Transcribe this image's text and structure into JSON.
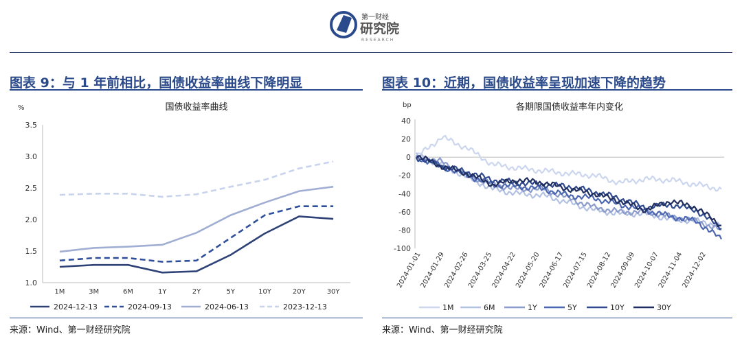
{
  "header": {
    "logo_small": "第一财经",
    "logo_big": "研究院",
    "logo_sub": "RESEARCH"
  },
  "left": {
    "panel_title": "图表 9：与 1 年前相比，国债收益率曲线下降明显",
    "source": "来源：Wind、第一财经研究院"
  },
  "right": {
    "panel_title": "图表 10：近期，国债收益率呈现加速下降的趋势",
    "source": "来源：Wind、第一财经研究院"
  },
  "chart_data": [
    {
      "type": "line",
      "title": "国债收益率曲线",
      "ylabel": "%",
      "xlabel": "",
      "categories": [
        "1M",
        "3M",
        "6M",
        "1Y",
        "2Y",
        "5Y",
        "10Y",
        "20Y",
        "30Y"
      ],
      "ylim": [
        1.0,
        3.5
      ],
      "yticks": [
        "1.0",
        "1.5",
        "2.0",
        "2.5",
        "3.0",
        "3.5"
      ],
      "legend_position": "bottom",
      "series": [
        {
          "name": "2024-12-13",
          "color": "#2e4278",
          "dash": "solid",
          "values": [
            1.25,
            1.28,
            1.28,
            1.16,
            1.18,
            1.44,
            1.78,
            2.05,
            2.01
          ]
        },
        {
          "name": "2024-09-13",
          "color": "#2f4e9b",
          "dash": "dashed",
          "values": [
            1.35,
            1.39,
            1.39,
            1.33,
            1.35,
            1.71,
            2.07,
            2.21,
            2.21
          ]
        },
        {
          "name": "2024-06-13",
          "color": "#a0aed3",
          "dash": "solid",
          "values": [
            1.49,
            1.55,
            1.57,
            1.6,
            1.79,
            2.07,
            2.27,
            2.45,
            2.52
          ]
        },
        {
          "name": "2023-12-13",
          "color": "#c8d3ec",
          "dash": "dashed",
          "values": [
            2.39,
            2.41,
            2.41,
            2.36,
            2.4,
            2.52,
            2.63,
            2.81,
            2.92
          ]
        }
      ]
    },
    {
      "type": "line",
      "title": "各期限国债收益率年内变化",
      "ylabel": "bp",
      "xlabel": "",
      "ylim": [
        -100,
        40
      ],
      "yticks": [
        "40",
        "20",
        "0",
        "-20",
        "-40",
        "-60",
        "-80",
        "-100"
      ],
      "x_ticks": [
        "2024-01-01",
        "2024-01-29",
        "2024-02-26",
        "2024-03-25",
        "2024-04-22",
        "2024-05-20",
        "2024-06-17",
        "2024-07-15",
        "2024-08-12",
        "2024-09-09",
        "2024-10-07",
        "2024-11-04",
        "2024-12-02"
      ],
      "legend_position": "bottom",
      "series": [
        {
          "name": "1M",
          "color": "#ccd6ee",
          "values": [
            0,
            22,
            10,
            -8,
            -12,
            -15,
            -18,
            -20,
            -28,
            -24,
            -25,
            -30,
            -35
          ]
        },
        {
          "name": "6M",
          "color": "#b3c1e2",
          "values": [
            2,
            -8,
            -22,
            -35,
            -40,
            -42,
            -50,
            -58,
            -62,
            -62,
            -68,
            -70,
            -75
          ]
        },
        {
          "name": "1Y",
          "color": "#8b9ccc",
          "values": [
            0,
            -5,
            -20,
            -30,
            -35,
            -35,
            -45,
            -55,
            -60,
            -60,
            -65,
            -70,
            -80
          ]
        },
        {
          "name": "5Y",
          "color": "#4c67b1",
          "values": [
            0,
            -10,
            -20,
            -30,
            -32,
            -35,
            -42,
            -45,
            -52,
            -58,
            -65,
            -70,
            -90
          ]
        },
        {
          "name": "10Y",
          "color": "#2f4a8f",
          "values": [
            0,
            -10,
            -16,
            -25,
            -28,
            -30,
            -32,
            -38,
            -45,
            -55,
            -52,
            -58,
            -78
          ]
        },
        {
          "name": "30Y",
          "color": "#1f2e5e",
          "values": [
            2,
            -10,
            -18,
            -30,
            -25,
            -28,
            -35,
            -40,
            -48,
            -58,
            -48,
            -55,
            -75
          ]
        }
      ]
    }
  ]
}
